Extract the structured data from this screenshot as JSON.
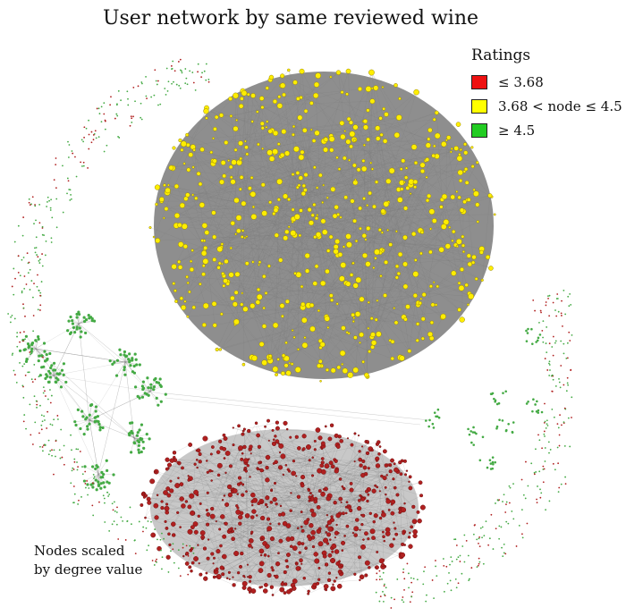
{
  "title": "User network by same reviewed wine",
  "legend": {
    "title": "Ratings",
    "items": [
      {
        "label": "≤ 3.68",
        "color": "#ee1111"
      },
      {
        "label": "3.68 < node ≤ 4.5",
        "color": "#ffff00"
      },
      {
        "label": "≥ 4.5",
        "color": "#22cc22"
      }
    ]
  },
  "note": {
    "line1": "Nodes scaled",
    "line2": "by degree value"
  },
  "colors": {
    "edge": "#777777",
    "red_node": "#b02020",
    "yellow_node": "#ffee00",
    "green_node": "#44aa44"
  }
}
